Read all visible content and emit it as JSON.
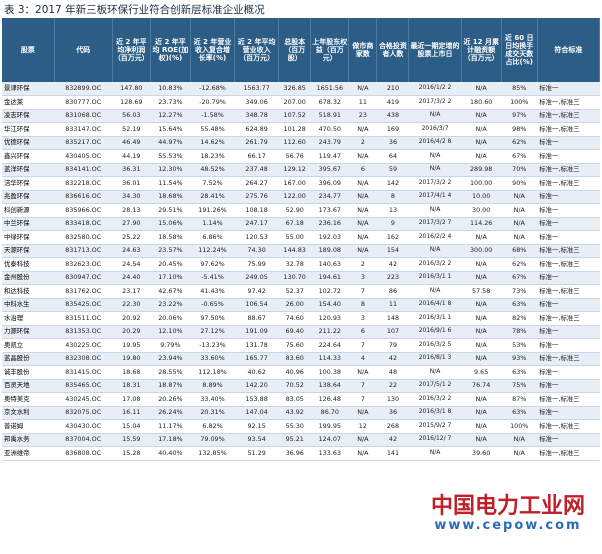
{
  "title": "表 3：2017 年新三板环保行业符合创新层标准企业概况",
  "headers": [
    "股票",
    "代码",
    "近 2 年平均净利润（百万元）",
    "近 2 年平均 ROE(加权)(%)",
    "近 2 年营业收入复合增长率(%)",
    "近 2 年平均营业收入（百万元）",
    "总股本（百万股）",
    "上年股东权益（百万元）",
    "做市商家数",
    "合格投资者人数",
    "最近一期定增的股票上市日",
    "近 12 月累计融资额（百万元）",
    "近 60 日日均换手成交天数占比(%)",
    "符合标准"
  ],
  "rows": [
    [
      "景津环保",
      "832899.OC",
      "147.80",
      "10.83%",
      "-12.68%",
      "1563.77",
      "326.85",
      "1651.56",
      "N/A",
      "210",
      "2016/1/2 2",
      "N/A",
      "85%",
      "标准一"
    ],
    [
      "金达莱",
      "830777.OC",
      "128.69",
      "23.73%",
      "-20.79%",
      "349.06",
      "207.00",
      "678.32",
      "11",
      "419",
      "2017/3/2 2",
      "180.60",
      "100%",
      "标准一,标准三"
    ],
    [
      "凌志环保",
      "831068.OC",
      "56.03",
      "12.27%",
      "-1.58%",
      "348.78",
      "107.52",
      "518.91",
      "23",
      "438",
      "N/A",
      "N/A",
      "97%",
      "标准一,标准三"
    ],
    [
      "华江环保",
      "833147.OC",
      "52.19",
      "15.64%",
      "55.48%",
      "624.89",
      "101.28",
      "470.50",
      "N/A",
      "169",
      "2016/3/7",
      "N/A",
      "98%",
      "标准一,标准三"
    ],
    [
      "优德环保",
      "835217.OC",
      "46.49",
      "44.97%",
      "14.62%",
      "261.79",
      "112.60",
      "243.79",
      "2",
      "36",
      "2016/4/2 8",
      "N/A",
      "62%",
      "标准一"
    ],
    [
      "鑫兴环保",
      "430405.OC",
      "44.19",
      "55.53%",
      "18.23%",
      "66.17",
      "56.76",
      "119.47",
      "N/A",
      "64",
      "N/A",
      "N/A",
      "67%",
      "标准一"
    ],
    [
      "蓝洋环保",
      "834141.OC",
      "36.31",
      "12.30%",
      "48.52%",
      "237.48",
      "129.12",
      "395.67",
      "6",
      "59",
      "N/A",
      "289.98",
      "70%",
      "标准一,标准三"
    ],
    [
      "洁华环保",
      "832218.OC",
      "36.01",
      "11.54%",
      "7.52%",
      "264.27",
      "167.00",
      "396.09",
      "N/A",
      "142",
      "2017/3/2 2",
      "100.00",
      "90%",
      "标准一,标准三"
    ],
    [
      "兆盈环保",
      "836616.OC",
      "34.30",
      "18.68%",
      "28.41%",
      "275.76",
      "122.00",
      "234.77",
      "N/A",
      "8",
      "2017/4/1 4",
      "10.00",
      "N/A",
      "标准一"
    ],
    [
      "科创新源",
      "835966.OC",
      "28.13",
      "29.51%",
      "191.26%",
      "108.18",
      "52.90",
      "173.67",
      "N/A",
      "13",
      "N/A",
      "30.00",
      "N/A",
      "标准一"
    ],
    [
      "中兰环保",
      "833418.OC",
      "27.90",
      "15.06%",
      "1.14%",
      "247.17",
      "67.18",
      "236.16",
      "N/A",
      "9",
      "2017/3/2 7",
      "114.26",
      "N/A",
      "标准一"
    ],
    [
      "中绿环保",
      "832580.OC",
      "25.22",
      "18.58%",
      "6.86%",
      "120.53",
      "55.00",
      "192.03",
      "N/A",
      "162",
      "2016/2/2 4",
      "N/A",
      "N/A",
      "标准一"
    ],
    [
      "天源环保",
      "831713.OC",
      "24.63",
      "23.57%",
      "112.24%",
      "74.30",
      "144.83",
      "189.08",
      "N/A",
      "154",
      "N/A",
      "300.00",
      "68%",
      "标准一,标准三"
    ],
    [
      "优泰科技",
      "832623.OC",
      "24.54",
      "20.45%",
      "97.62%",
      "75.99",
      "32.78",
      "140.63",
      "2",
      "42",
      "2016/3/2 2",
      "N/A",
      "62%",
      "标准一,标准三"
    ],
    [
      "金州股份",
      "830947.OC",
      "24.40",
      "17.10%",
      "-5.41%",
      "249.05",
      "130.70",
      "194.61",
      "3",
      "223",
      "2016/3/1 1",
      "N/A",
      "67%",
      "标准一"
    ],
    [
      "和达科技",
      "831762.OC",
      "23.17",
      "42.67%",
      "41.43%",
      "97.42",
      "52.37",
      "102.72",
      "7",
      "86",
      "N/A",
      "57.58",
      "73%",
      "标准一,标准三"
    ],
    [
      "中科水生",
      "835425.OC",
      "22.30",
      "23.22%",
      "-0.65%",
      "106.54",
      "26.00",
      "154.40",
      "8",
      "11",
      "2016/4/1 8",
      "N/A",
      "63%",
      "标准一"
    ],
    [
      "水治理",
      "831511.OC",
      "20.92",
      "20.06%",
      "97.50%",
      "88.67",
      "74.60",
      "120.93",
      "3",
      "148",
      "2016/3/1 1",
      "N/A",
      "82%",
      "标准一,标准三"
    ],
    [
      "力源环保",
      "831353.OC",
      "20.29",
      "12.10%",
      "27.12%",
      "191.09",
      "69.40",
      "211.22",
      "6",
      "107",
      "2016/9/1 6",
      "N/A",
      "78%",
      "标准一"
    ],
    [
      "奥凯立",
      "430225.OC",
      "19.95",
      "9.79%",
      "-13.23%",
      "131.78",
      "75.60",
      "224.64",
      "7",
      "79",
      "2016/3/2 5",
      "N/A",
      "53%",
      "标准一"
    ],
    [
      "蓝晶股份",
      "832308.OC",
      "19.80",
      "23.94%",
      "33.60%",
      "165.77",
      "83.60",
      "114.33",
      "4",
      "42",
      "2016/8/1 3",
      "N/A",
      "93%",
      "标准一,标准三"
    ],
    [
      "诚丰股份",
      "831415.OC",
      "18.68",
      "28.55%",
      "112.18%",
      "40.62",
      "40.96",
      "100.38",
      "N/A",
      "48",
      "N/A",
      "9.65",
      "63%",
      "标准一"
    ],
    [
      "百灵天地",
      "835465.OC",
      "18.31",
      "18.87%",
      "8.89%",
      "142.20",
      "70.52",
      "138.64",
      "7",
      "22",
      "2017/5/1 2",
      "76.74",
      "75%",
      "标准一"
    ],
    [
      "奥特美克",
      "430245.OC",
      "17.08",
      "20.26%",
      "33.40%",
      "153.88",
      "83.05",
      "126.48",
      "7",
      "130",
      "2016/3/2 2",
      "N/A",
      "87%",
      "标准一,标准三"
    ],
    [
      "京文水利",
      "832075.OC",
      "16.11",
      "26.24%",
      "20.31%",
      "147.04",
      "43.92",
      "86.70",
      "N/A",
      "36",
      "2016/3/1 8",
      "N/A",
      "63%",
      "标准一"
    ],
    [
      "普诺姆",
      "430430.OC",
      "15.04",
      "11.17%",
      "6.82%",
      "92.15",
      "55.30",
      "199.95",
      "12",
      "268",
      "2015/9/2 7",
      "N/A",
      "100%",
      "标准一,标准三"
    ],
    [
      "邦禹水务",
      "837004.OC",
      "15.59",
      "17.18%",
      "79.09%",
      "93.54",
      "95.21",
      "124.07",
      "N/A",
      "42",
      "2016/12/ 7",
      "N/A",
      "N/A",
      "标准一"
    ],
    [
      "亚洲维帝",
      "836808.OC",
      "15.28",
      "40.40%",
      "132.85%",
      "51.29",
      "36.96",
      "133.63",
      "N/A",
      "141",
      "N/A",
      "39.60",
      "N/A",
      "标准一,标准三"
    ]
  ],
  "watermark": {
    "cn": "中国电力工业网",
    "url": "www.cepow.com"
  }
}
